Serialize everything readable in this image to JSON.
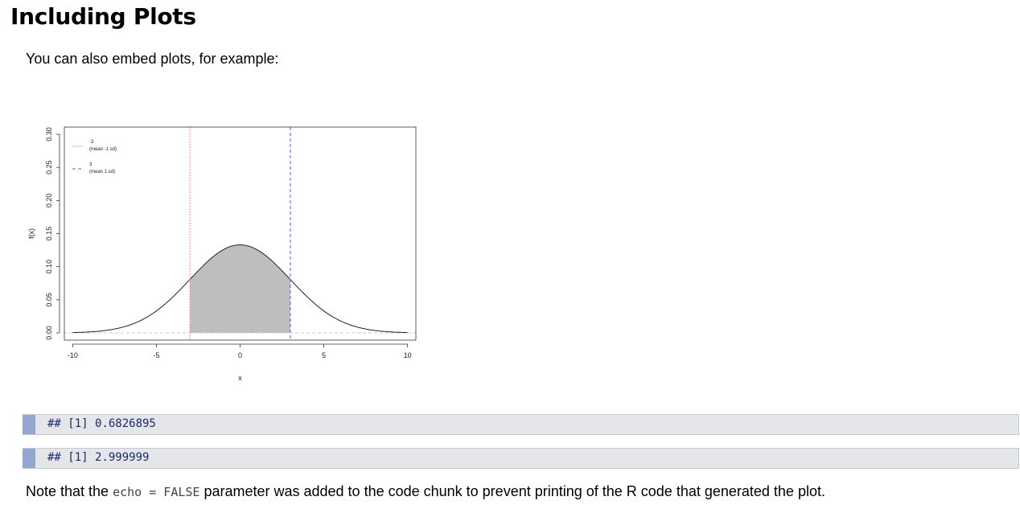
{
  "heading": "Including Plots",
  "intro": "You can also embed plots, for example:",
  "outputs": [
    "## [1] 0.6826895",
    "## [1] 2.999999"
  ],
  "note": {
    "before": "Note that the ",
    "code": "echo = FALSE",
    "after": " parameter was added to the code chunk to prevent printing of the R code that generated the plot."
  },
  "chart_data": {
    "type": "area",
    "xlabel": "x",
    "ylabel": "f(x)",
    "xlim": [
      -10.5,
      10.5
    ],
    "ylim": [
      0,
      0.3
    ],
    "xticks": [
      -10,
      -5,
      0,
      5,
      10
    ],
    "yticks": [
      0.0,
      0.05,
      0.1,
      0.15,
      0.2,
      0.25,
      0.3
    ],
    "curve": {
      "distribution": "normal",
      "mean": 0,
      "sd": 3,
      "x_range": [
        -10,
        10
      ]
    },
    "shaded_region": {
      "from": -3,
      "to": 3,
      "color": "#bebebe"
    },
    "vlines": [
      {
        "x": -3,
        "color": "#ff6b6b",
        "style": "dotted"
      },
      {
        "x": 3,
        "color": "#5a5ae6",
        "style": "dashed"
      }
    ],
    "baseline": {
      "y": 0,
      "color": "#cccccc",
      "style": "dashed"
    },
    "legend": {
      "position": "top-left",
      "entries": [
        {
          "line1": "-3",
          "line2": "(mean -1 sd)",
          "color": "#ff6b6b",
          "style": "dotted"
        },
        {
          "line1": "3",
          "line2": "(mean 1 sd)",
          "color": "#5a5ae6",
          "style": "dashed"
        }
      ]
    },
    "grid": false
  }
}
